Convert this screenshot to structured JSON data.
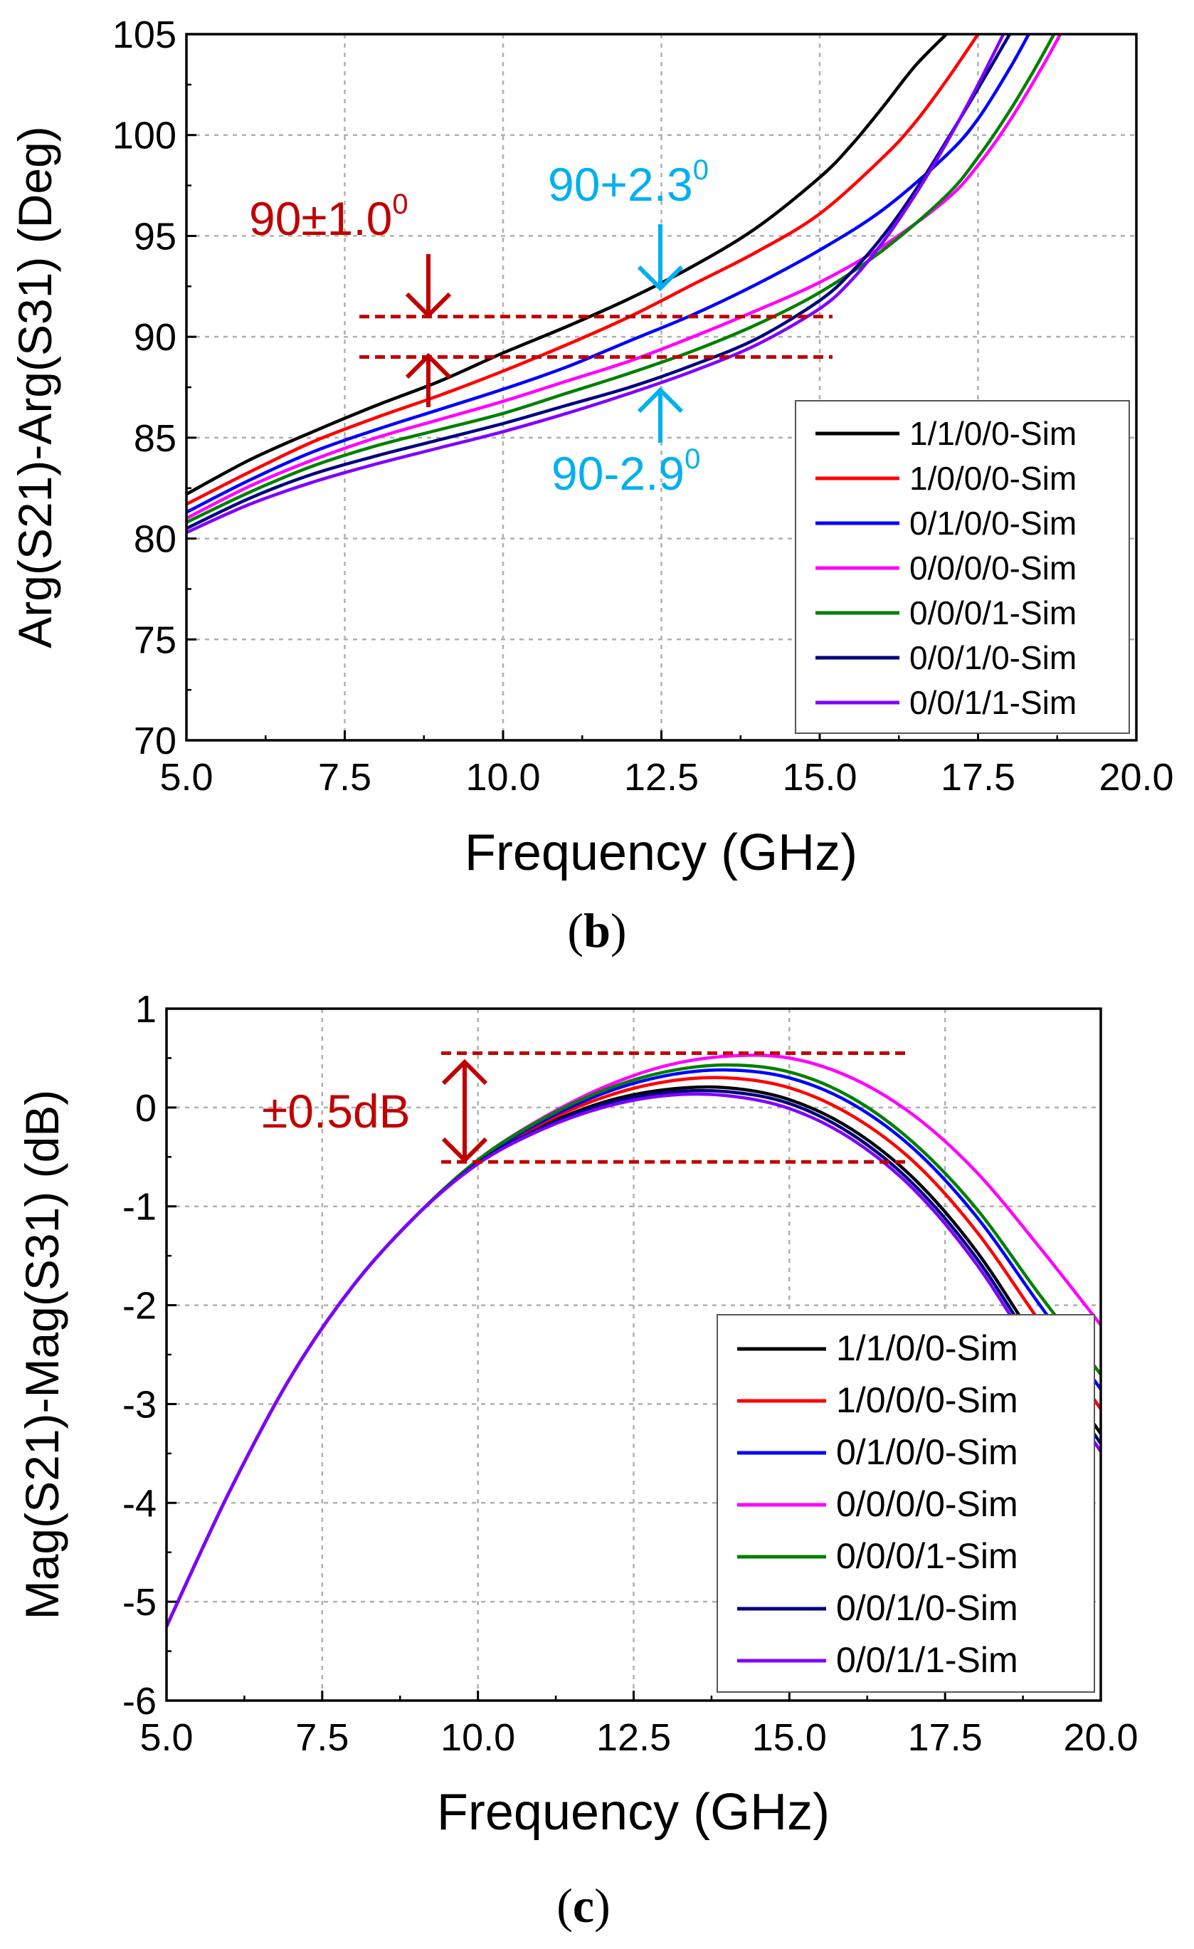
{
  "chart_data": [
    {
      "type": "line",
      "panel_label": "b",
      "xlabel": "Frequency (GHz)",
      "ylabel": "Arg(S21)-Arg(S31) (Deg)",
      "xlim": [
        5.0,
        20.0
      ],
      "ylim": [
        70,
        105
      ],
      "x_ticks": [
        "5.0",
        "7.5",
        "10.0",
        "12.5",
        "15.0",
        "17.5",
        "20.0"
      ],
      "y_ticks": [
        "70",
        "75",
        "80",
        "85",
        "90",
        "95",
        "100",
        "105"
      ],
      "grid": true,
      "legend_position": "bottom-right",
      "series": [
        {
          "name": "1/1/0/0-Sim",
          "color": "#000000",
          "x": [
            5,
            6,
            7,
            8,
            9,
            10,
            11,
            12,
            13,
            14,
            15,
            15.5,
            16,
            16.5,
            17
          ],
          "y": [
            82.2,
            83.9,
            85.3,
            86.6,
            87.8,
            89.2,
            90.5,
            91.9,
            93.5,
            95.4,
            97.9,
            99.5,
            101.4,
            103.4,
            105
          ]
        },
        {
          "name": "1/0/0/0-Sim",
          "color": "#ff0000",
          "x": [
            5,
            6,
            7,
            8,
            9,
            10,
            11,
            12,
            13,
            14,
            15,
            16,
            16.5,
            17,
            17.5
          ],
          "y": [
            81.7,
            83.3,
            84.8,
            86.0,
            87.1,
            88.3,
            89.6,
            91.0,
            92.6,
            94.2,
            96.1,
            98.9,
            100.6,
            102.7,
            105
          ]
        },
        {
          "name": "0/1/0/0-Sim",
          "color": "#0000ff",
          "x": [
            5,
            6,
            7,
            8,
            9,
            10,
            11,
            12,
            13,
            14,
            15,
            16,
            17,
            17.5,
            18,
            18.3
          ],
          "y": [
            81.3,
            82.9,
            84.3,
            85.4,
            86.4,
            87.4,
            88.5,
            89.8,
            91.1,
            92.6,
            94.3,
            96.3,
            99.0,
            100.8,
            103.3,
            105
          ]
        },
        {
          "name": "0/0/0/0-Sim",
          "color": "#ff00ff",
          "x": [
            5,
            6,
            7,
            8,
            9,
            10,
            11,
            12,
            13,
            14,
            15,
            16,
            17,
            17.5,
            18,
            18.5,
            18.8
          ],
          "y": [
            81.0,
            82.6,
            83.9,
            85.0,
            85.9,
            86.8,
            87.8,
            88.8,
            90.0,
            91.3,
            92.7,
            94.5,
            96.8,
            98.5,
            100.7,
            103.3,
            105
          ]
        },
        {
          "name": "0/0/0/1-Sim",
          "color": "#008000",
          "x": [
            5,
            6,
            7,
            8,
            9,
            10,
            11,
            12,
            13,
            14,
            15,
            16,
            17,
            17.5,
            18,
            18.4,
            18.7
          ],
          "y": [
            80.8,
            82.3,
            83.6,
            84.6,
            85.4,
            86.2,
            87.2,
            88.2,
            89.3,
            90.6,
            92.2,
            94.3,
            97.0,
            98.9,
            101.2,
            103.3,
            105
          ]
        },
        {
          "name": "0/0/1/0-Sim",
          "color": "#000080",
          "x": [
            5,
            6,
            7,
            8,
            9,
            10,
            11,
            12,
            13,
            14,
            15,
            15.5,
            16,
            16.5,
            17,
            17.5,
            18
          ],
          "y": [
            80.5,
            82.0,
            83.2,
            84.1,
            84.9,
            85.7,
            86.6,
            87.5,
            88.6,
            89.9,
            91.8,
            93.2,
            95.0,
            97.2,
            99.7,
            102.3,
            105
          ]
        },
        {
          "name": "0/0/1/1-Sim",
          "color": "#8000ff",
          "x": [
            5,
            6,
            7,
            8,
            9,
            10,
            11,
            12,
            13,
            14,
            15,
            15.5,
            16,
            16.5,
            17,
            17.5,
            17.9
          ],
          "y": [
            80.3,
            81.7,
            82.8,
            83.7,
            84.5,
            85.3,
            86.2,
            87.2,
            88.3,
            89.6,
            91.4,
            92.8,
            94.7,
            97.0,
            99.6,
            102.5,
            105
          ]
        }
      ],
      "annotations": [
        {
          "text": "90±1.0",
          "sup": "0",
          "color": "#c00000"
        },
        {
          "text": "90+2.3",
          "sup": "0",
          "color": "#00b0f0"
        },
        {
          "text": "90-2.9",
          "sup": "0",
          "color": "#00b0f0"
        }
      ],
      "reference_lines": [
        91.0,
        89.0
      ]
    },
    {
      "type": "line",
      "panel_label": "c",
      "xlabel": "Frequency (GHz)",
      "ylabel": "Mag(S21)-Mag(S31) (dB)",
      "xlim": [
        5.0,
        20.0
      ],
      "ylim": [
        -6,
        1
      ],
      "x_ticks": [
        "5.0",
        "7.5",
        "10.0",
        "12.5",
        "15.0",
        "17.5",
        "20.0"
      ],
      "y_ticks": [
        "-6",
        "-5",
        "-4",
        "-3",
        "-2",
        "-1",
        "0",
        "1"
      ],
      "grid": true,
      "legend_position": "bottom-right",
      "series": [
        {
          "name": "1/1/0/0-Sim",
          "color": "#000000",
          "x": [
            5,
            6,
            7,
            8,
            9,
            10,
            11,
            12,
            13,
            14,
            15,
            16,
            17,
            18,
            19,
            20
          ],
          "y": [
            -5.25,
            -3.9,
            -2.72,
            -1.8,
            -1.1,
            -0.55,
            -0.2,
            0.05,
            0.18,
            0.2,
            0.08,
            -0.22,
            -0.72,
            -1.45,
            -2.4,
            -3.3
          ]
        },
        {
          "name": "1/0/0/0-Sim",
          "color": "#ff0000",
          "x": [
            5,
            6,
            7,
            8,
            9,
            10,
            11,
            12,
            13,
            14,
            15,
            16,
            17,
            18,
            19,
            20
          ],
          "y": [
            -5.25,
            -3.9,
            -2.72,
            -1.8,
            -1.1,
            -0.54,
            -0.17,
            0.1,
            0.26,
            0.3,
            0.2,
            -0.08,
            -0.55,
            -1.25,
            -2.15,
            -3.05
          ]
        },
        {
          "name": "0/1/0/0-Sim",
          "color": "#0000ff",
          "x": [
            5,
            6,
            7,
            8,
            9,
            10,
            11,
            12,
            13,
            14,
            15,
            16,
            17,
            18,
            19,
            20
          ],
          "y": [
            -5.25,
            -3.9,
            -2.72,
            -1.8,
            -1.1,
            -0.54,
            -0.15,
            0.14,
            0.32,
            0.38,
            0.3,
            0.04,
            -0.42,
            -1.1,
            -1.98,
            -2.85
          ]
        },
        {
          "name": "0/0/0/0-Sim",
          "color": "#ff00ff",
          "x": [
            5,
            6,
            7,
            8,
            9,
            10,
            11,
            12,
            13,
            14,
            15,
            16,
            17,
            18,
            19,
            20
          ],
          "y": [
            -5.25,
            -3.9,
            -2.72,
            -1.8,
            -1.1,
            -0.53,
            -0.12,
            0.2,
            0.42,
            0.52,
            0.5,
            0.3,
            -0.08,
            -0.65,
            -1.4,
            -2.2
          ]
        },
        {
          "name": "0/0/0/1-Sim",
          "color": "#008000",
          "x": [
            5,
            6,
            7,
            8,
            9,
            10,
            11,
            12,
            13,
            14,
            15,
            16,
            17,
            18,
            19,
            20
          ],
          "y": [
            -5.25,
            -3.9,
            -2.72,
            -1.8,
            -1.1,
            -0.53,
            -0.13,
            0.17,
            0.36,
            0.43,
            0.36,
            0.1,
            -0.36,
            -1.02,
            -1.88,
            -2.7
          ]
        },
        {
          "name": "0/0/1/0-Sim",
          "color": "#000080",
          "x": [
            5,
            6,
            7,
            8,
            9,
            10,
            11,
            12,
            13,
            14,
            15,
            16,
            17,
            18,
            19,
            20
          ],
          "y": [
            -5.25,
            -3.9,
            -2.72,
            -1.8,
            -1.1,
            -0.56,
            -0.21,
            0.03,
            0.15,
            0.16,
            0.04,
            -0.27,
            -0.78,
            -1.52,
            -2.48,
            -3.4
          ]
        },
        {
          "name": "0/0/1/1-Sim",
          "color": "#8000ff",
          "x": [
            5,
            6,
            7,
            8,
            9,
            10,
            11,
            12,
            13,
            14,
            15,
            16,
            17,
            18,
            19,
            20
          ],
          "y": [
            -5.25,
            -3.9,
            -2.72,
            -1.8,
            -1.1,
            -0.57,
            -0.23,
            0.0,
            0.12,
            0.12,
            -0.01,
            -0.32,
            -0.83,
            -1.58,
            -2.55,
            -3.48
          ]
        }
      ],
      "annotations": [
        {
          "text": "±0.5dB",
          "color": "#c00000"
        }
      ],
      "reference_lines": [
        0.55,
        -0.55
      ]
    }
  ]
}
